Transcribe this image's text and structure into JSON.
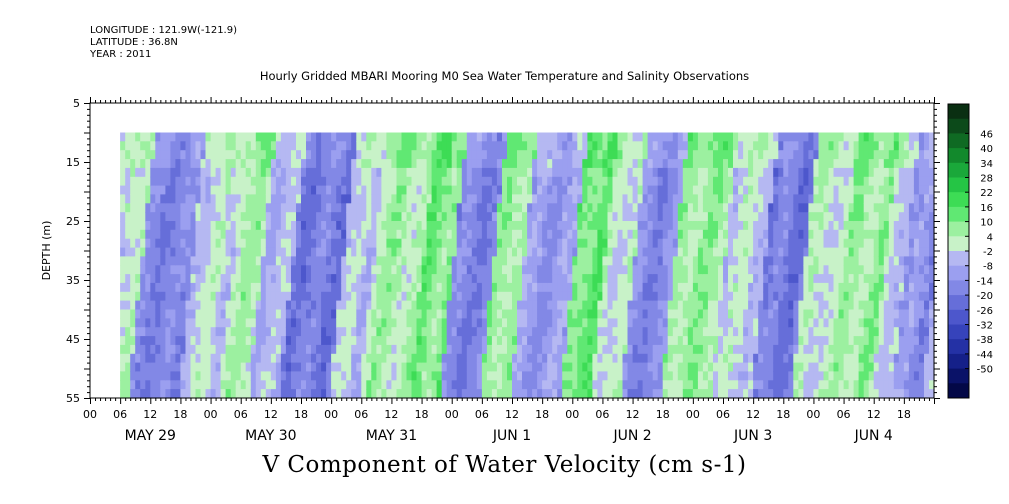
{
  "header": {
    "longitude": "LONGITUDE : 121.9W(-121.9)",
    "latitude": "LATITUDE : 36.8N",
    "year": "YEAR : 2011"
  },
  "chart_data": {
    "type": "heatmap",
    "title": "Hourly Gridded MBARI Mooring M0 Sea Water Temperature and Salinity Observations",
    "xlabel": "V Component of Water Velocity (cm s-1)",
    "ylabel": "DEPTH (m)",
    "x_range_hours": [
      0,
      168
    ],
    "x_data_start_hour": 6,
    "x_hour_ticks": [
      "00",
      "06",
      "12",
      "18",
      "00",
      "06",
      "12",
      "18",
      "00",
      "06",
      "12",
      "18",
      "00",
      "06",
      "12",
      "18",
      "00",
      "06",
      "12",
      "18",
      "00",
      "06",
      "12",
      "18",
      "00",
      "06",
      "12",
      "18"
    ],
    "x_day_labels": [
      "MAY 29",
      "MAY 30",
      "MAY 31",
      "JUN  1",
      "JUN  2",
      "JUN  3",
      "JUN  4"
    ],
    "y_range": [
      5,
      55
    ],
    "y_inverted": true,
    "y_ticks": [
      "5",
      "15",
      "25",
      "35",
      "45",
      "55"
    ],
    "data_depth_range": [
      10,
      55
    ],
    "colorbar_levels": [
      "46",
      "40",
      "34",
      "28",
      "22",
      "16",
      "10",
      "4",
      "-2",
      "-8",
      "-14",
      "-20",
      "-26",
      "-32",
      "-38",
      "-44",
      "-50"
    ],
    "colorbar_colors": [
      "#0a2f12",
      "#0c4a1a",
      "#0f6a23",
      "#12892c",
      "#1aa83a",
      "#25c545",
      "#3ddc55",
      "#60e873",
      "#9cf0a0",
      "#c8f2c8",
      "#b5b8f2",
      "#9b9ff0",
      "#8288e6",
      "#666ed9",
      "#4d57cc",
      "#3643bb",
      "#2431a5",
      "#152089",
      "#0a1268",
      "#030847"
    ],
    "dominant_pattern": [
      {
        "start_hour": 6,
        "end_hour": 10,
        "value": 8
      },
      {
        "start_hour": 10,
        "end_hour": 20,
        "value": -12
      },
      {
        "start_hour": 20,
        "end_hour": 28,
        "value": 4
      },
      {
        "start_hour": 28,
        "end_hour": 34,
        "value": 10
      },
      {
        "start_hour": 34,
        "end_hour": 40,
        "value": 0
      },
      {
        "start_hour": 40,
        "end_hour": 50,
        "value": -14
      },
      {
        "start_hour": 50,
        "end_hour": 56,
        "value": 2
      },
      {
        "start_hour": 56,
        "end_hour": 66,
        "value": 10
      },
      {
        "start_hour": 66,
        "end_hour": 72,
        "value": 16
      },
      {
        "start_hour": 72,
        "end_hour": 80,
        "value": -12
      },
      {
        "start_hour": 80,
        "end_hour": 86,
        "value": 12
      },
      {
        "start_hour": 86,
        "end_hour": 96,
        "value": -6
      },
      {
        "start_hour": 96,
        "end_hour": 102,
        "value": 18
      },
      {
        "start_hour": 102,
        "end_hour": 108,
        "value": 6
      },
      {
        "start_hour": 108,
        "end_hour": 116,
        "value": -10
      },
      {
        "start_hour": 116,
        "end_hour": 126,
        "value": 12
      },
      {
        "start_hour": 126,
        "end_hour": 134,
        "value": 4
      },
      {
        "start_hour": 134,
        "end_hour": 142,
        "value": -14
      },
      {
        "start_hour": 142,
        "end_hour": 150,
        "value": 6
      },
      {
        "start_hour": 150,
        "end_hour": 158,
        "value": 12
      },
      {
        "start_hour": 158,
        "end_hour": 162,
        "value": 4
      },
      {
        "start_hour": 162,
        "end_hour": 168,
        "value": -8
      }
    ]
  }
}
